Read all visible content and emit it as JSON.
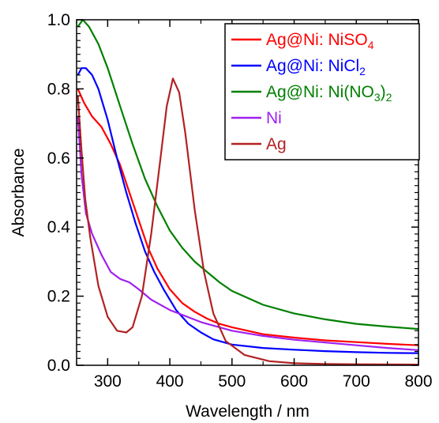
{
  "chart_data": {
    "type": "line",
    "title": "",
    "xlabel": "Wavelength / nm",
    "ylabel": "Absorbance",
    "xlim": [
      250,
      800
    ],
    "ylim": [
      0.0,
      1.0
    ],
    "x_ticks": [
      300,
      400,
      500,
      600,
      700,
      800
    ],
    "y_ticks": [
      0.0,
      0.2,
      0.4,
      0.6,
      0.8,
      1.0
    ],
    "x_tick_labels": [
      "300",
      "400",
      "500",
      "600",
      "700",
      "800"
    ],
    "y_tick_labels": [
      "0.0",
      "0.2",
      "0.4",
      "0.6",
      "0.8",
      "1.0"
    ],
    "grid": false,
    "legend_position": "top-right",
    "series": [
      {
        "name_parts": [
          {
            "t": "Ag@Ni: NiSO"
          },
          {
            "t": "4",
            "sub": true
          }
        ],
        "color": "#ff0000",
        "x": [
          252,
          262,
          275,
          290,
          305,
          320,
          335,
          350,
          365,
          380,
          400,
          420,
          440,
          460,
          480,
          500,
          550,
          600,
          650,
          700,
          750,
          800
        ],
        "y": [
          0.8,
          0.76,
          0.72,
          0.69,
          0.64,
          0.58,
          0.5,
          0.42,
          0.34,
          0.28,
          0.22,
          0.18,
          0.155,
          0.135,
          0.12,
          0.11,
          0.09,
          0.08,
          0.072,
          0.067,
          0.062,
          0.058
        ]
      },
      {
        "name_parts": [
          {
            "t": "Ag@Ni: NiCl"
          },
          {
            "t": "2",
            "sub": true
          }
        ],
        "color": "#0000ff",
        "x": [
          252,
          258,
          265,
          275,
          285,
          300,
          315,
          330,
          345,
          360,
          375,
          390,
          410,
          430,
          450,
          470,
          500,
          550,
          600,
          650,
          700,
          750,
          800
        ],
        "y": [
          0.84,
          0.86,
          0.86,
          0.84,
          0.8,
          0.71,
          0.6,
          0.5,
          0.41,
          0.33,
          0.27,
          0.22,
          0.16,
          0.12,
          0.095,
          0.075,
          0.06,
          0.05,
          0.045,
          0.041,
          0.038,
          0.036,
          0.035
        ]
      },
      {
        "name_parts": [
          {
            "t": "Ag@Ni: Ni(NO"
          },
          {
            "t": "3",
            "sub": true
          },
          {
            "t": ")"
          },
          {
            "t": "2",
            "sub": true
          }
        ],
        "color": "#008000",
        "x": [
          252,
          260,
          270,
          285,
          300,
          320,
          340,
          360,
          380,
          400,
          420,
          440,
          460,
          480,
          500,
          550,
          600,
          650,
          700,
          750,
          800
        ],
        "y": [
          0.98,
          1.0,
          0.98,
          0.93,
          0.86,
          0.75,
          0.64,
          0.54,
          0.46,
          0.39,
          0.34,
          0.3,
          0.27,
          0.24,
          0.215,
          0.175,
          0.15,
          0.133,
          0.12,
          0.112,
          0.105
        ]
      },
      {
        "name_parts": [
          {
            "t": "Ni"
          }
        ],
        "color": "#a020f0",
        "x": [
          252,
          258,
          265,
          275,
          290,
          305,
          320,
          335,
          350,
          370,
          400,
          450,
          500,
          550,
          600,
          650,
          700,
          750,
          800
        ],
        "y": [
          0.72,
          0.55,
          0.44,
          0.38,
          0.32,
          0.27,
          0.25,
          0.24,
          0.22,
          0.19,
          0.16,
          0.125,
          0.1,
          0.085,
          0.074,
          0.066,
          0.058,
          0.05,
          0.044
        ]
      },
      {
        "name_parts": [
          {
            "t": "Ag"
          }
        ],
        "color": "#b22222",
        "x": [
          252,
          258,
          264,
          272,
          285,
          300,
          315,
          330,
          340,
          355,
          370,
          385,
          395,
          405,
          415,
          425,
          440,
          455,
          470,
          490,
          520,
          560,
          600,
          650,
          700,
          800
        ],
        "y": [
          0.78,
          0.62,
          0.48,
          0.37,
          0.23,
          0.14,
          0.1,
          0.095,
          0.11,
          0.2,
          0.38,
          0.6,
          0.75,
          0.83,
          0.79,
          0.67,
          0.45,
          0.27,
          0.15,
          0.07,
          0.03,
          0.012,
          0.006,
          0.004,
          0.003,
          0.002
        ]
      }
    ]
  }
}
